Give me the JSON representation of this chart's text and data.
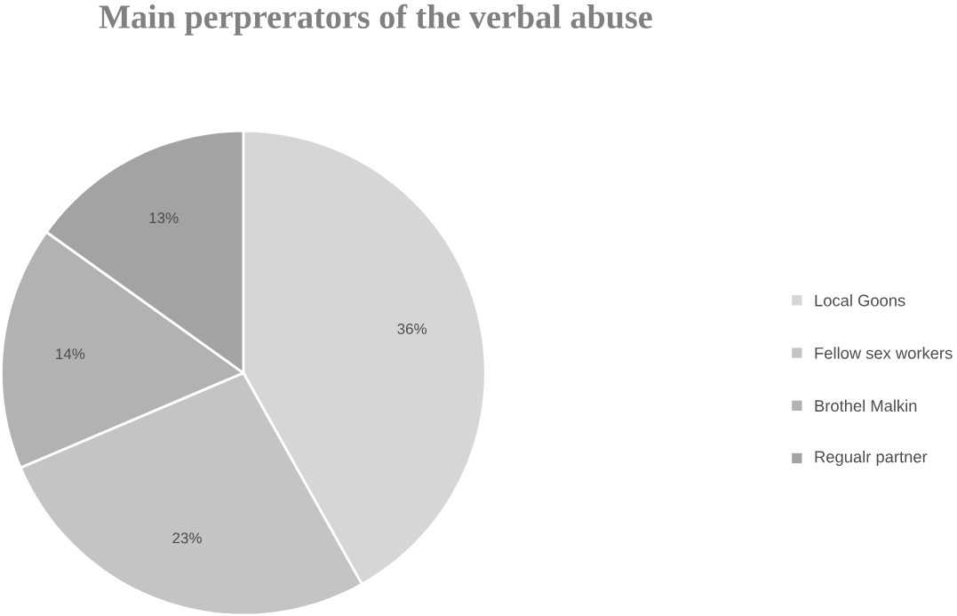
{
  "chart_data": {
    "type": "pie",
    "title": "Main perprerators of the verbal abuse",
    "categories": [
      "Local Goons",
      "Fellow sex workers",
      "Brothel Malkin",
      "Regualr partner"
    ],
    "values": [
      36,
      23,
      14,
      13
    ],
    "value_labels": [
      "36%",
      "23%",
      "14%",
      "13%"
    ],
    "colors": [
      "#d6d6d6",
      "#c4c4c4",
      "#b2b2b2",
      "#a3a3a3"
    ],
    "legend": "right"
  }
}
